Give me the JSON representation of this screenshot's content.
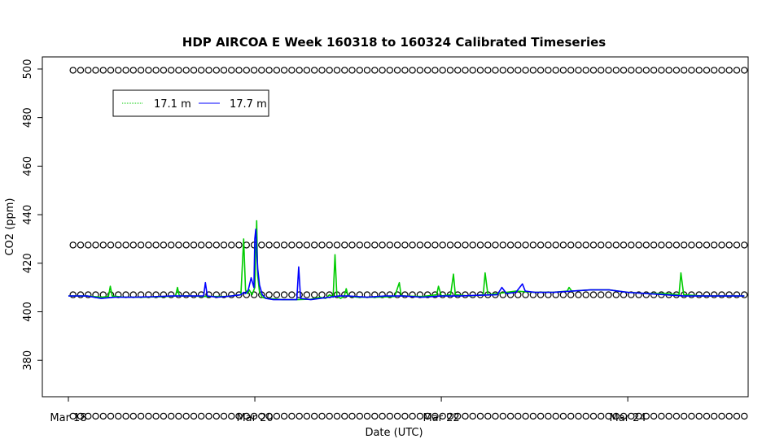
{
  "chart_data": {
    "type": "line",
    "title": "HDP AIRCOA E  Week 160318 to 160324  Calibrated Timeseries",
    "xlabel": "Date (UTC)",
    "ylabel": "CO2 (ppm)",
    "xlim": [
      0,
      7.3
    ],
    "ylim": [
      365,
      505
    ],
    "x_ticks": [
      {
        "value": 0,
        "label": "Mar 18"
      },
      {
        "value": 2,
        "label": "Mar 20"
      },
      {
        "value": 4,
        "label": "Mar 22"
      },
      {
        "value": 6,
        "label": "Mar 24"
      }
    ],
    "y_ticks": [
      380,
      400,
      420,
      440,
      460,
      480,
      500
    ],
    "grid": false,
    "legend": {
      "position": "top-left",
      "entries": [
        "17.1 m",
        "17.7 m"
      ]
    },
    "series": [
      {
        "name": "17.1 m",
        "color": "#00cc00",
        "x": [
          0.0,
          0.2,
          0.35,
          0.43,
          0.45,
          0.47,
          0.6,
          0.8,
          1.0,
          1.15,
          1.17,
          1.19,
          1.3,
          1.5,
          1.7,
          1.85,
          1.88,
          1.9,
          1.92,
          1.94,
          1.97,
          2.0,
          2.02,
          2.03,
          2.05,
          2.08,
          2.12,
          2.2,
          2.3,
          2.45,
          2.6,
          2.7,
          2.76,
          2.8,
          2.84,
          2.86,
          2.88,
          2.92,
          2.96,
          2.98,
          3.0,
          3.1,
          3.3,
          3.5,
          3.55,
          3.57,
          3.6,
          3.8,
          3.95,
          3.97,
          4.0,
          4.1,
          4.13,
          4.15,
          4.3,
          4.45,
          4.47,
          4.5,
          4.6,
          4.8,
          5.0,
          5.2,
          5.35,
          5.37,
          5.4,
          5.6,
          5.8,
          6.0,
          6.2,
          6.4,
          6.55,
          6.57,
          6.6,
          6.8,
          7.0,
          7.25
        ],
        "y": [
          406.5,
          406.5,
          406.0,
          406.3,
          410.5,
          406.5,
          406.0,
          406.0,
          406.2,
          406.5,
          410.0,
          406.5,
          406.5,
          406.3,
          406.3,
          407.0,
          430.0,
          409.0,
          407.5,
          409.0,
          407.0,
          410.0,
          437.5,
          415.0,
          408.0,
          406.0,
          405.5,
          405.3,
          405.0,
          405.0,
          405.2,
          406.0,
          405.5,
          407.0,
          406.0,
          423.5,
          406.5,
          405.5,
          406.5,
          409.5,
          406.5,
          406.0,
          406.0,
          406.3,
          412.0,
          406.5,
          406.5,
          406.3,
          407.0,
          410.5,
          406.5,
          407.0,
          415.5,
          407.0,
          406.5,
          407.0,
          416.0,
          407.0,
          407.5,
          408.5,
          408.0,
          408.0,
          408.5,
          410.0,
          408.5,
          409.0,
          409.0,
          408.0,
          407.5,
          407.5,
          407.0,
          416.0,
          407.0,
          406.5,
          406.5,
          406.5
        ]
      },
      {
        "name": "17.7 m",
        "color": "#0000ff",
        "x": [
          0.0,
          0.2,
          0.35,
          0.5,
          0.7,
          0.9,
          1.1,
          1.3,
          1.45,
          1.47,
          1.49,
          1.6,
          1.75,
          1.85,
          1.88,
          1.9,
          1.93,
          1.96,
          1.99,
          2.0,
          2.01,
          2.03,
          2.05,
          2.08,
          2.12,
          2.2,
          2.3,
          2.45,
          2.47,
          2.49,
          2.6,
          2.7,
          2.8,
          2.9,
          3.0,
          3.2,
          3.4,
          3.6,
          3.8,
          4.0,
          4.2,
          4.4,
          4.6,
          4.65,
          4.7,
          4.8,
          4.87,
          4.9,
          5.0,
          5.2,
          5.4,
          5.6,
          5.8,
          6.0,
          6.2,
          6.4,
          6.6,
          6.8,
          7.0,
          7.25
        ],
        "y": [
          406.5,
          406.5,
          405.5,
          406.0,
          406.0,
          406.2,
          406.5,
          406.5,
          406.5,
          412.0,
          406.5,
          406.0,
          406.5,
          407.0,
          408.0,
          407.5,
          409.0,
          414.0,
          410.0,
          430.0,
          434.0,
          418.0,
          411.0,
          407.0,
          405.5,
          405.0,
          405.0,
          405.0,
          418.5,
          405.5,
          405.0,
          405.5,
          406.0,
          406.5,
          406.5,
          406.0,
          406.5,
          406.5,
          406.0,
          406.5,
          406.5,
          406.8,
          407.0,
          410.0,
          407.5,
          408.0,
          411.5,
          408.5,
          408.0,
          408.0,
          408.5,
          409.0,
          409.0,
          408.0,
          407.5,
          407.0,
          406.5,
          406.5,
          406.5,
          406.5
        ]
      },
      {
        "name": "",
        "marker": "circle",
        "color": "#000000",
        "levels": [
          357,
          407,
          427.5,
          499.5
        ],
        "x_range": [
          0.05,
          7.25
        ],
        "points_per_level": 90
      }
    ]
  }
}
